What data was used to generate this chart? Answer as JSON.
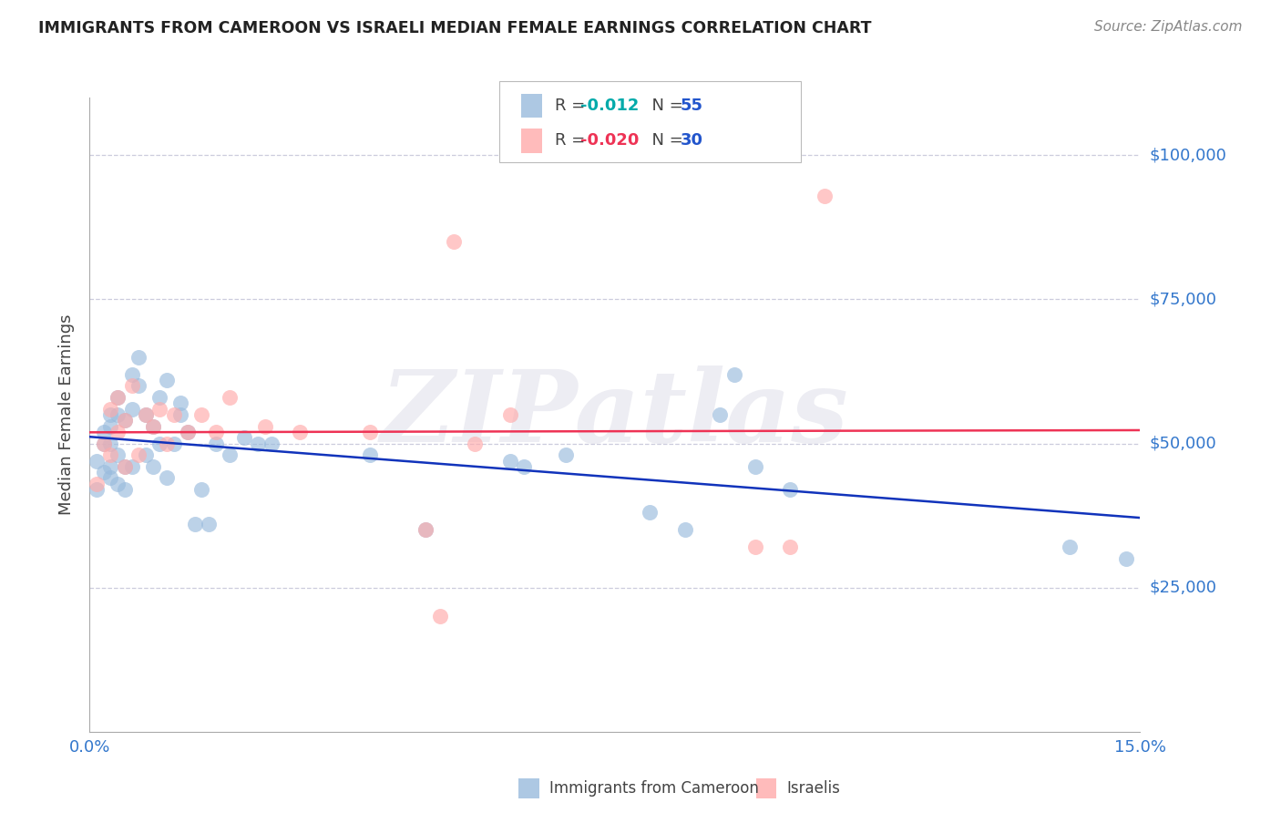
{
  "title": "IMMIGRANTS FROM CAMEROON VS ISRAELI MEDIAN FEMALE EARNINGS CORRELATION CHART",
  "source": "Source: ZipAtlas.com",
  "ylabel": "Median Female Earnings",
  "xlim": [
    0.0,
    0.15
  ],
  "ylim": [
    0,
    110000
  ],
  "yticks": [
    0,
    25000,
    50000,
    75000,
    100000
  ],
  "xticks": [
    0.0,
    0.025,
    0.05,
    0.075,
    0.1,
    0.125,
    0.15
  ],
  "xtick_labels": [
    "0.0%",
    "",
    "",
    "",
    "",
    "",
    "15.0%"
  ],
  "color_blue": "#99BBDD",
  "color_pink": "#FFAAAA",
  "line_blue": "#1133BB",
  "line_pink": "#EE3355",
  "axis_color": "#3377CC",
  "grid_color": "#DDDDEE",
  "blue_x": [
    0.001,
    0.001,
    0.002,
    0.002,
    0.002,
    0.003,
    0.003,
    0.003,
    0.003,
    0.003,
    0.004,
    0.004,
    0.004,
    0.004,
    0.005,
    0.005,
    0.005,
    0.006,
    0.006,
    0.006,
    0.007,
    0.007,
    0.008,
    0.008,
    0.009,
    0.009,
    0.01,
    0.01,
    0.011,
    0.011,
    0.012,
    0.013,
    0.013,
    0.014,
    0.015,
    0.016,
    0.017,
    0.018,
    0.02,
    0.022,
    0.024,
    0.026,
    0.04,
    0.048,
    0.06,
    0.062,
    0.068,
    0.08,
    0.085,
    0.09,
    0.092,
    0.095,
    0.1,
    0.14,
    0.148
  ],
  "blue_y": [
    42000,
    47000,
    45000,
    50000,
    52000,
    44000,
    46000,
    50000,
    53000,
    55000,
    43000,
    48000,
    55000,
    58000,
    42000,
    46000,
    54000,
    46000,
    56000,
    62000,
    60000,
    65000,
    48000,
    55000,
    46000,
    53000,
    50000,
    58000,
    44000,
    61000,
    50000,
    55000,
    57000,
    52000,
    36000,
    42000,
    36000,
    50000,
    48000,
    51000,
    50000,
    50000,
    48000,
    35000,
    47000,
    46000,
    48000,
    38000,
    35000,
    55000,
    62000,
    46000,
    42000,
    32000,
    30000
  ],
  "pink_x": [
    0.001,
    0.002,
    0.003,
    0.003,
    0.004,
    0.004,
    0.005,
    0.005,
    0.006,
    0.007,
    0.008,
    0.009,
    0.01,
    0.011,
    0.012,
    0.014,
    0.016,
    0.018,
    0.02,
    0.025,
    0.03,
    0.04,
    0.048,
    0.05,
    0.055,
    0.06,
    0.095,
    0.1,
    0.105,
    0.052
  ],
  "pink_y": [
    43000,
    50000,
    48000,
    56000,
    52000,
    58000,
    46000,
    54000,
    60000,
    48000,
    55000,
    53000,
    56000,
    50000,
    55000,
    52000,
    55000,
    52000,
    58000,
    53000,
    52000,
    52000,
    35000,
    20000,
    50000,
    55000,
    32000,
    32000,
    93000,
    85000
  ],
  "watermark": "ZIPatlas"
}
